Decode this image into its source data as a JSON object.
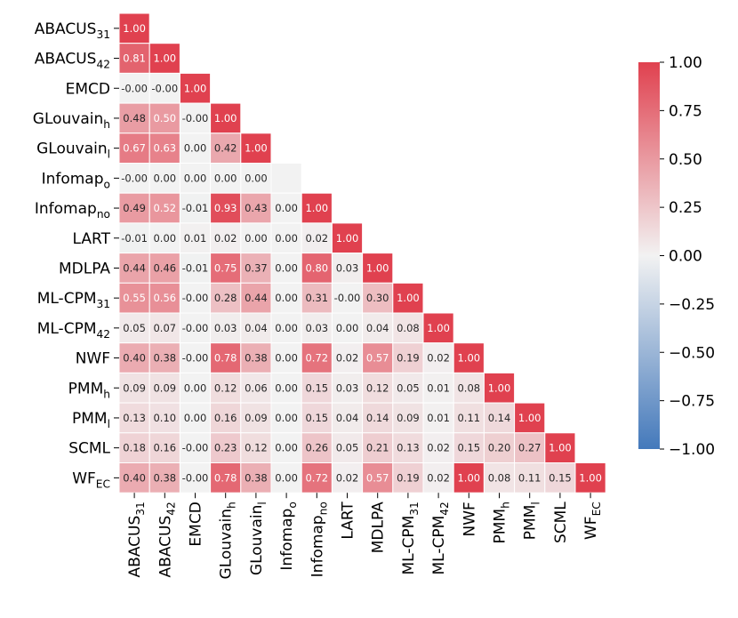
{
  "chart_data": {
    "type": "heatmap",
    "title": "",
    "triangle": "lower",
    "row_labels": [
      {
        "base": "ABACUS",
        "sub": "31"
      },
      {
        "base": "ABACUS",
        "sub": "42"
      },
      {
        "base": "EMCD",
        "sub": ""
      },
      {
        "base": "GLouvain",
        "sub": "h"
      },
      {
        "base": "GLouvain",
        "sub": "l"
      },
      {
        "base": "Infomap",
        "sub": "o"
      },
      {
        "base": "Infomap",
        "sub": "no"
      },
      {
        "base": "LART",
        "sub": ""
      },
      {
        "base": "MDLPA",
        "sub": ""
      },
      {
        "base": "ML-CPM",
        "sub": "31"
      },
      {
        "base": "ML-CPM",
        "sub": "42"
      },
      {
        "base": "NWF",
        "sub": ""
      },
      {
        "base": "PMM",
        "sub": "h"
      },
      {
        "base": "PMM",
        "sub": "l"
      },
      {
        "base": "SCML",
        "sub": ""
      },
      {
        "base": "WF",
        "sub": "EC"
      }
    ],
    "col_labels": [
      {
        "base": "ABACUS",
        "sub": "31"
      },
      {
        "base": "ABACUS",
        "sub": "42"
      },
      {
        "base": "EMCD",
        "sub": ""
      },
      {
        "base": "GLouvain",
        "sub": "h"
      },
      {
        "base": "GLouvain",
        "sub": "l"
      },
      {
        "base": "Infomap",
        "sub": "o"
      },
      {
        "base": "Infomap",
        "sub": "no"
      },
      {
        "base": "LART",
        "sub": ""
      },
      {
        "base": "MDLPA",
        "sub": ""
      },
      {
        "base": "ML-CPM",
        "sub": "31"
      },
      {
        "base": "ML-CPM",
        "sub": "42"
      },
      {
        "base": "NWF",
        "sub": ""
      },
      {
        "base": "PMM",
        "sub": "h"
      },
      {
        "base": "PMM",
        "sub": "l"
      },
      {
        "base": "SCML",
        "sub": ""
      },
      {
        "base": "WF",
        "sub": "EC"
      }
    ],
    "cell_labels": [
      [
        "1.00"
      ],
      [
        "0.81",
        "1.00"
      ],
      [
        "-0.00",
        "-0.00",
        "1.00"
      ],
      [
        "0.48",
        "0.50",
        "-0.00",
        "1.00"
      ],
      [
        "0.67",
        "0.63",
        "0.00",
        "0.42",
        "1.00"
      ],
      [
        "-0.00",
        "0.00",
        "0.00",
        "0.00",
        "0.00",
        ""
      ],
      [
        "0.49",
        "0.52",
        "-0.01",
        "0.93",
        "0.43",
        "0.00",
        "1.00"
      ],
      [
        "-0.01",
        "0.00",
        "0.01",
        "0.02",
        "0.00",
        "0.00",
        "0.02",
        "1.00"
      ],
      [
        "0.44",
        "0.46",
        "-0.01",
        "0.75",
        "0.37",
        "0.00",
        "0.80",
        "0.03",
        "1.00"
      ],
      [
        "0.55",
        "0.56",
        "-0.00",
        "0.28",
        "0.44",
        "0.00",
        "0.31",
        "-0.00",
        "0.30",
        "1.00"
      ],
      [
        "0.05",
        "0.07",
        "-0.00",
        "0.03",
        "0.04",
        "0.00",
        "0.03",
        "0.00",
        "0.04",
        "0.08",
        "1.00"
      ],
      [
        "0.40",
        "0.38",
        "-0.00",
        "0.78",
        "0.38",
        "0.00",
        "0.72",
        "0.02",
        "0.57",
        "0.19",
        "0.02",
        "1.00"
      ],
      [
        "0.09",
        "0.09",
        "0.00",
        "0.12",
        "0.06",
        "0.00",
        "0.15",
        "0.03",
        "0.12",
        "0.05",
        "0.01",
        "0.08",
        "1.00"
      ],
      [
        "0.13",
        "0.10",
        "0.00",
        "0.16",
        "0.09",
        "0.00",
        "0.15",
        "0.04",
        "0.14",
        "0.09",
        "0.01",
        "0.11",
        "0.14",
        "1.00"
      ],
      [
        "0.18",
        "0.16",
        "-0.00",
        "0.23",
        "0.12",
        "0.00",
        "0.26",
        "0.05",
        "0.21",
        "0.13",
        "0.02",
        "0.15",
        "0.20",
        "0.27",
        "1.00"
      ],
      [
        "0.40",
        "0.38",
        "-0.00",
        "0.78",
        "0.38",
        "0.00",
        "0.72",
        "0.02",
        "0.57",
        "0.19",
        "0.02",
        "1.00",
        "0.08",
        "0.11",
        "0.15",
        "1.00"
      ]
    ],
    "colorbar": {
      "min": -1.0,
      "max": 1.0,
      "ticks": [
        "1.00",
        "0.75",
        "0.50",
        "0.25",
        "0.00",
        "−0.25",
        "−0.50",
        "−0.75",
        "−1.00"
      ],
      "tick_values": [
        1.0,
        0.75,
        0.5,
        0.25,
        0.0,
        -0.25,
        -0.5,
        -0.75,
        -1.0
      ]
    },
    "colors": {
      "positive": "#e0414f",
      "negative": "#4479bb",
      "neutral": "#f2f2f2"
    }
  }
}
